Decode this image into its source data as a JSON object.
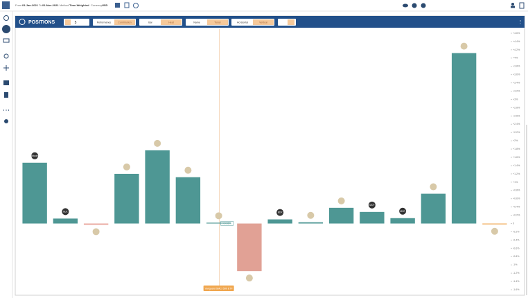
{
  "topbar": {
    "from_label": "From",
    "from": "01-Jan-2021",
    "to_label": "To",
    "to": "01-Nov-2021",
    "method_label": "Method",
    "method": "Time-Weighted",
    "currency_label": "Currency",
    "currency": "USD"
  },
  "panel": {
    "title": "POSITIONS",
    "count": "5",
    "toggles": [
      [
        "Performance",
        "Contribution"
      ],
      [
        "Bar",
        "Heat"
      ],
      [
        "Name",
        "Ticker"
      ],
      [
        "Horizontal",
        "Vertical"
      ]
    ]
  },
  "chart_data": {
    "type": "bar",
    "categories": [
      "Bitcoin",
      "BLK",
      null,
      null,
      null,
      null,
      null,
      null,
      "BDX",
      null,
      null,
      "MCF",
      "MCR",
      null,
      null,
      null
    ],
    "values": [
      1.47,
      0.12,
      -0.03,
      1.2,
      1.77,
      1.12,
      0.02,
      -1.15,
      0.1,
      0.03,
      0.38,
      0.28,
      0.13,
      0.72,
      4.12,
      -0.02
    ],
    "value_labels": [
      null,
      null,
      null,
      null,
      null,
      null,
      "+0.02%",
      null,
      null,
      null,
      null,
      null,
      null,
      null,
      null,
      null
    ],
    "colors": [
      "#4e9794",
      "#4e9794",
      "#e8a39a",
      "#4e9794",
      "#4e9794",
      "#4e9794",
      "#4e9794",
      "#e1a195",
      "#4e9794",
      "#4e9794",
      "#4e9794",
      "#4e9794",
      "#4e9794",
      "#4e9794",
      "#4e9794",
      "#f0a64e"
    ],
    "annotation": "Vanguard SMCI 500 ETF",
    "ylim": [
      -1.7,
      4.7
    ],
    "yticks": [
      {
        "value": -1.6,
        "label": "-1.6%"
      },
      {
        "value": -1.4,
        "label": "-1.4%"
      },
      {
        "value": -1.2,
        "label": "-1.2%"
      },
      {
        "value": -1,
        "label": "-1%"
      },
      {
        "value": -0.8,
        "label": "-0.8%"
      },
      {
        "value": -0.6,
        "label": "-0.6%"
      },
      {
        "value": -0.4,
        "label": "-0.4%"
      },
      {
        "value": -0.2,
        "label": "-0.2%"
      },
      0,
      {
        "value": 0.2,
        "label": "+0.2%"
      },
      {
        "value": 0.4,
        "label": "+0.4%"
      },
      {
        "value": 0.6,
        "label": "+0.6%"
      },
      {
        "value": 0.8,
        "label": "+0.8%"
      },
      {
        "value": 1,
        "label": "+1%"
      },
      {
        "value": 1.2,
        "label": "+1.2%"
      },
      {
        "value": 1.4,
        "label": "+1.4%"
      },
      {
        "value": 1.6,
        "label": "+1.6%"
      },
      {
        "value": 1.8,
        "label": "+1.8%"
      },
      {
        "value": 2,
        "label": "+2%"
      },
      {
        "value": 2.2,
        "label": "+2.2%"
      },
      {
        "value": 2.4,
        "label": "+2.4%"
      },
      {
        "value": 2.6,
        "label": "+2.6%"
      },
      {
        "value": 2.8,
        "label": "+2.8%"
      },
      {
        "value": 3,
        "label": "+3%"
      },
      {
        "value": 3.2,
        "label": "+3.2%"
      },
      {
        "value": 3.4,
        "label": "+3.4%"
      },
      {
        "value": 3.6,
        "label": "+3.6%"
      },
      {
        "value": 3.8,
        "label": "+3.8%"
      },
      {
        "value": 4,
        "label": "+4%"
      },
      {
        "value": 4.2,
        "label": "+4.2%"
      },
      {
        "value": 4.4,
        "label": "+4.4%"
      },
      {
        "value": 4.6,
        "label": "+4.6%"
      }
    ],
    "grid": false
  }
}
